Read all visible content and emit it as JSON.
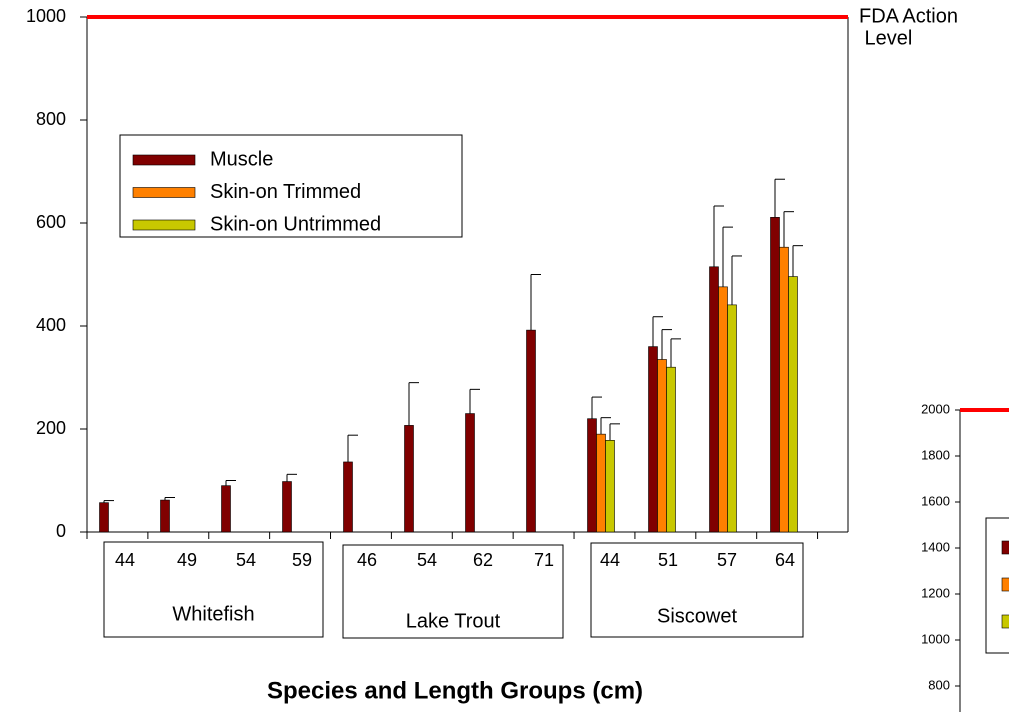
{
  "chart_data": [
    {
      "type": "bar",
      "xlabel": "Species and Length Groups (cm)",
      "groups": [
        {
          "label": "Whitefish",
          "categories": [
            "44",
            "49",
            "54",
            "59"
          ]
        },
        {
          "label": "Lake Trout",
          "categories": [
            "46",
            "54",
            "62",
            "71"
          ]
        },
        {
          "label": "Siscowet",
          "categories": [
            "44",
            "51",
            "57",
            "64"
          ]
        }
      ],
      "series": [
        {
          "name": "Muscle",
          "color": "#800000",
          "values": [
            57,
            62,
            90,
            98,
            136,
            207,
            230,
            392,
            220,
            360,
            515,
            611
          ],
          "errors": [
            4,
            5,
            10,
            14,
            52,
            83,
            47,
            108,
            42,
            58,
            118,
            74
          ]
        },
        {
          "name": "Skin-on Trimmed",
          "color": "#ff8000",
          "values": [
            null,
            null,
            null,
            null,
            null,
            null,
            null,
            null,
            190,
            335,
            476,
            553
          ],
          "errors": [
            null,
            null,
            null,
            null,
            null,
            null,
            null,
            null,
            32,
            58,
            116,
            69
          ]
        },
        {
          "name": "Skin-on Untrimmed",
          "color": "#c8c800",
          "values": [
            null,
            null,
            null,
            null,
            null,
            null,
            null,
            null,
            178,
            320,
            441,
            496
          ],
          "errors": [
            null,
            null,
            null,
            null,
            null,
            null,
            null,
            null,
            32,
            55,
            95,
            60
          ]
        }
      ],
      "ylim": [
        0,
        1000
      ],
      "yticks": [
        0,
        200,
        400,
        600,
        800,
        1000
      ],
      "reference_line": {
        "value": 1000,
        "color": "#ff0000",
        "label": [
          "FDA Action",
          " Level"
        ]
      },
      "legend": "upper left"
    },
    {
      "type": "bar",
      "series": [
        {
          "color": "#800000"
        },
        {
          "color": "#ff8000"
        },
        {
          "color": "#c8c800"
        }
      ],
      "ylim": [
        0,
        2000
      ],
      "yticks": [
        800,
        1000,
        1200,
        1400,
        1600,
        1800,
        2000
      ],
      "reference_line": {
        "value": 2000,
        "color": "#ff0000"
      }
    }
  ]
}
